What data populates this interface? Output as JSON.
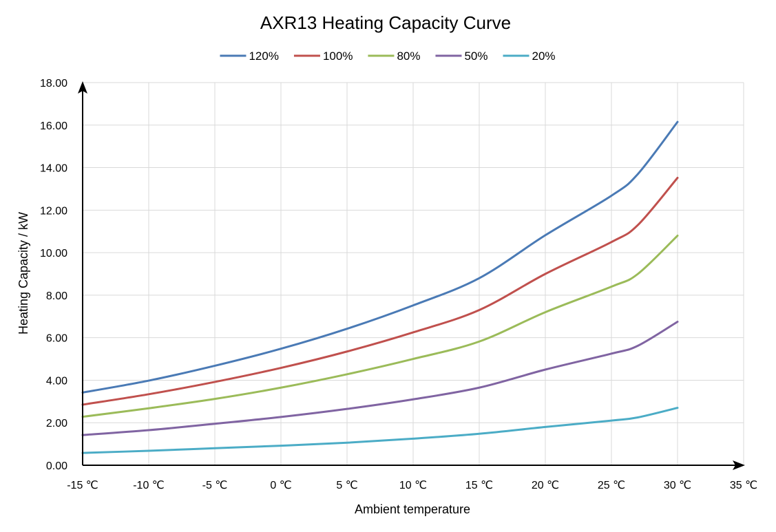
{
  "chart_data": {
    "type": "line",
    "title": "AXR13 Heating Capacity Curve",
    "xlabel": "Ambient temperature",
    "ylabel": "Heating Capacity / kW",
    "x_unit": "℃",
    "xlim": [
      -15,
      35
    ],
    "ylim": [
      0,
      18
    ],
    "x_ticks": [
      -15,
      -10,
      -5,
      0,
      5,
      10,
      15,
      20,
      25,
      30,
      35
    ],
    "y_ticks": [
      0,
      2,
      4,
      6,
      8,
      10,
      12,
      14,
      16,
      18
    ],
    "y_tick_decimals": 2,
    "grid": true,
    "legend_position": "top",
    "x": [
      -15,
      -10,
      -5,
      0,
      5,
      10,
      15,
      20,
      25,
      27,
      30
    ],
    "series": [
      {
        "name": "120%",
        "color": "#4a7ab5",
        "values": [
          3.42,
          3.98,
          4.68,
          5.48,
          6.42,
          7.52,
          8.8,
          10.82,
          12.68,
          13.7,
          16.15
        ]
      },
      {
        "name": "100%",
        "color": "#c0504d",
        "values": [
          2.85,
          3.34,
          3.92,
          4.58,
          5.35,
          6.25,
          7.3,
          9.0,
          10.5,
          11.3,
          13.52
        ]
      },
      {
        "name": "80%",
        "color": "#9bbb59",
        "values": [
          2.28,
          2.68,
          3.12,
          3.65,
          4.28,
          5.0,
          5.82,
          7.2,
          8.4,
          9.0,
          10.8
        ]
      },
      {
        "name": "50%",
        "color": "#8064a2",
        "values": [
          1.42,
          1.65,
          1.95,
          2.27,
          2.65,
          3.1,
          3.65,
          4.5,
          5.25,
          5.62,
          6.75
        ]
      },
      {
        "name": "20%",
        "color": "#4bacc6",
        "values": [
          0.58,
          0.68,
          0.8,
          0.92,
          1.06,
          1.25,
          1.48,
          1.8,
          2.1,
          2.25,
          2.7
        ]
      }
    ]
  }
}
